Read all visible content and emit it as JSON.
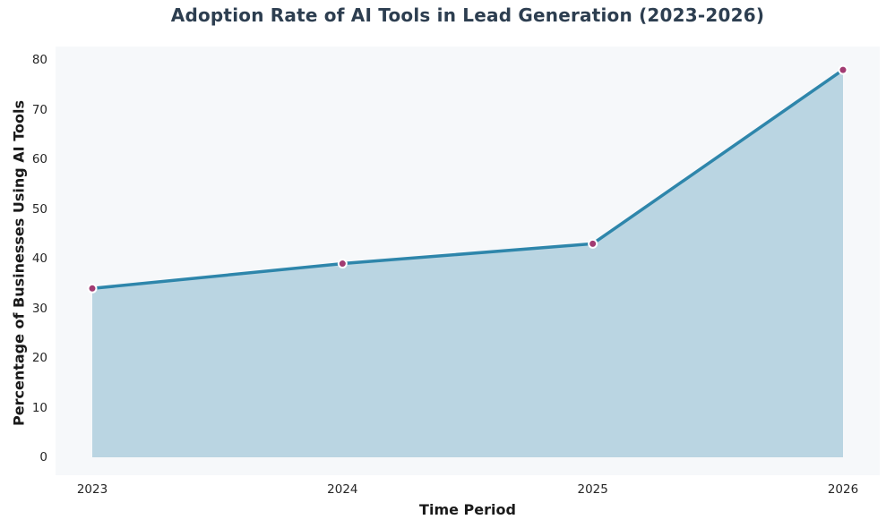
{
  "chart_data": {
    "type": "area",
    "title": "Adoption Rate of AI Tools in Lead Generation (2023-2026)",
    "categories": [
      "2023",
      "2024",
      "2025",
      "2026"
    ],
    "values": [
      34,
      39,
      43,
      78
    ],
    "xlabel": "Time Period",
    "ylabel": "Percentage of Businesses Using AI Tools",
    "ylim": [
      0,
      80
    ],
    "yticks": [
      0,
      10,
      20,
      30,
      40,
      50,
      60,
      70,
      80
    ],
    "grid": false,
    "legend": "none",
    "markers": true,
    "colors": {
      "line": "#2E86AB",
      "area_fill": "#2E86AB",
      "area_opacity": 0.3,
      "marker": "#A23B72",
      "marker_edge": "#FFFFFF",
      "plot_bg": "#f6f8fa",
      "figure_bg": "#FFFFFF",
      "title_text": "#2d3e50",
      "tick_text": "#262626",
      "axis_label_text": "#1a1a1a"
    }
  }
}
